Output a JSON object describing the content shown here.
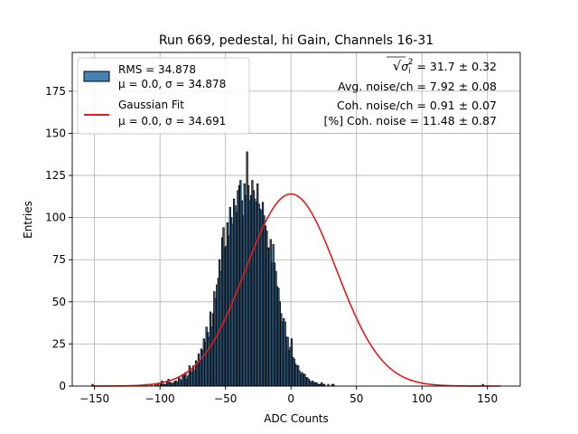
{
  "chart_data": {
    "type": "bar",
    "title": "Run 669, pedestal, hi Gain, Channels 16-31",
    "xlabel": "ADC Counts",
    "ylabel": "Entries",
    "xlim": [
      -167,
      175
    ],
    "ylim": [
      0,
      198
    ],
    "xticks": [
      -150,
      -100,
      -50,
      0,
      50,
      100,
      150
    ],
    "yticks": [
      0,
      25,
      50,
      75,
      100,
      125,
      150,
      175
    ],
    "grid": true,
    "legend_position": "top-left",
    "histogram": {
      "name": "RMS = 34.878",
      "stats_label": "μ = 0.0, σ = 34.878",
      "color": "#4682b4",
      "edge_color": "#000000",
      "bin_width": 1,
      "x_start": -152,
      "values": [
        1,
        0,
        0,
        0,
        0,
        0,
        0,
        0,
        0,
        0,
        0,
        0,
        0,
        0,
        0,
        0,
        0,
        0,
        0,
        0,
        0,
        0,
        0,
        0,
        0,
        0,
        0,
        0,
        0,
        0,
        0,
        0,
        0,
        0,
        0,
        0,
        0,
        0,
        0,
        0,
        0,
        1,
        0,
        0,
        0,
        1,
        0,
        0,
        1,
        0,
        1,
        0,
        1,
        3,
        1,
        1,
        1,
        3,
        4,
        2,
        2,
        1,
        2,
        3,
        3,
        2,
        5,
        4,
        3,
        7,
        6,
        8,
        4,
        6,
        12,
        10,
        8,
        12,
        9,
        15,
        14,
        19,
        15,
        22,
        21,
        28,
        26,
        35,
        32,
        29,
        44,
        35,
        43,
        56,
        52,
        60,
        64,
        75,
        68,
        88,
        94,
        82,
        83,
        97,
        89,
        106,
        100,
        96,
        111,
        107,
        103,
        116,
        119,
        122,
        110,
        101,
        120,
        113,
        139,
        119,
        110,
        113,
        122,
        116,
        111,
        109,
        120,
        108,
        105,
        104,
        109,
        101,
        95,
        92,
        82,
        82,
        87,
        73,
        84,
        73,
        68,
        59,
        58,
        50,
        43,
        38,
        40,
        38,
        29,
        29,
        21,
        23,
        28,
        17,
        16,
        13,
        12,
        12,
        9,
        7,
        8,
        7,
        7,
        5,
        5,
        4,
        3,
        2,
        3,
        2,
        2,
        2,
        1,
        1,
        1,
        2,
        1,
        1,
        0,
        0,
        1,
        0,
        0,
        1,
        1,
        0,
        0,
        0,
        0,
        0,
        0,
        0,
        0,
        0,
        0,
        0,
        0,
        0,
        0,
        0,
        0,
        0,
        0,
        0,
        0,
        0,
        0,
        0,
        0,
        0,
        0,
        0,
        0,
        0,
        0,
        0,
        0,
        0,
        0,
        0,
        0,
        0,
        0,
        0,
        0,
        0,
        0,
        0,
        0,
        0,
        0,
        0,
        0,
        0,
        0,
        0,
        0,
        0,
        0,
        0,
        0,
        0,
        0,
        0,
        0,
        0,
        0,
        0,
        0,
        0,
        0,
        0,
        0,
        0,
        0,
        0,
        0,
        0,
        0,
        0,
        0,
        0,
        0,
        0,
        0,
        0,
        0,
        0,
        0,
        0,
        0,
        0,
        0,
        0,
        0,
        0,
        0,
        0,
        0,
        0,
        0,
        0,
        0,
        0,
        0,
        0,
        0,
        0,
        0,
        0,
        0,
        0,
        0,
        0,
        0,
        0,
        0,
        0,
        1
      ]
    },
    "fit": {
      "name": "Gaussian Fit",
      "stats_label": "μ = 0.0, σ = 34.691",
      "color": "#e41a1c",
      "mu": 0.0,
      "sigma": 34.691,
      "amplitude": 114
    },
    "annotations": {
      "sqrt_prefix": "√",
      "sigma_symbol": "σ",
      "sigma_sub": "i",
      "sigma_sup": "2",
      "total_noise": " = 31.7 ± 0.32",
      "avg_noise": "Avg. noise/ch = 7.92 ± 0.08",
      "coh_noise": "Coh. noise/ch = 0.91 ± 0.07",
      "coh_pct": "[%] Coh. noise = 11.48 ± 0.87"
    }
  }
}
